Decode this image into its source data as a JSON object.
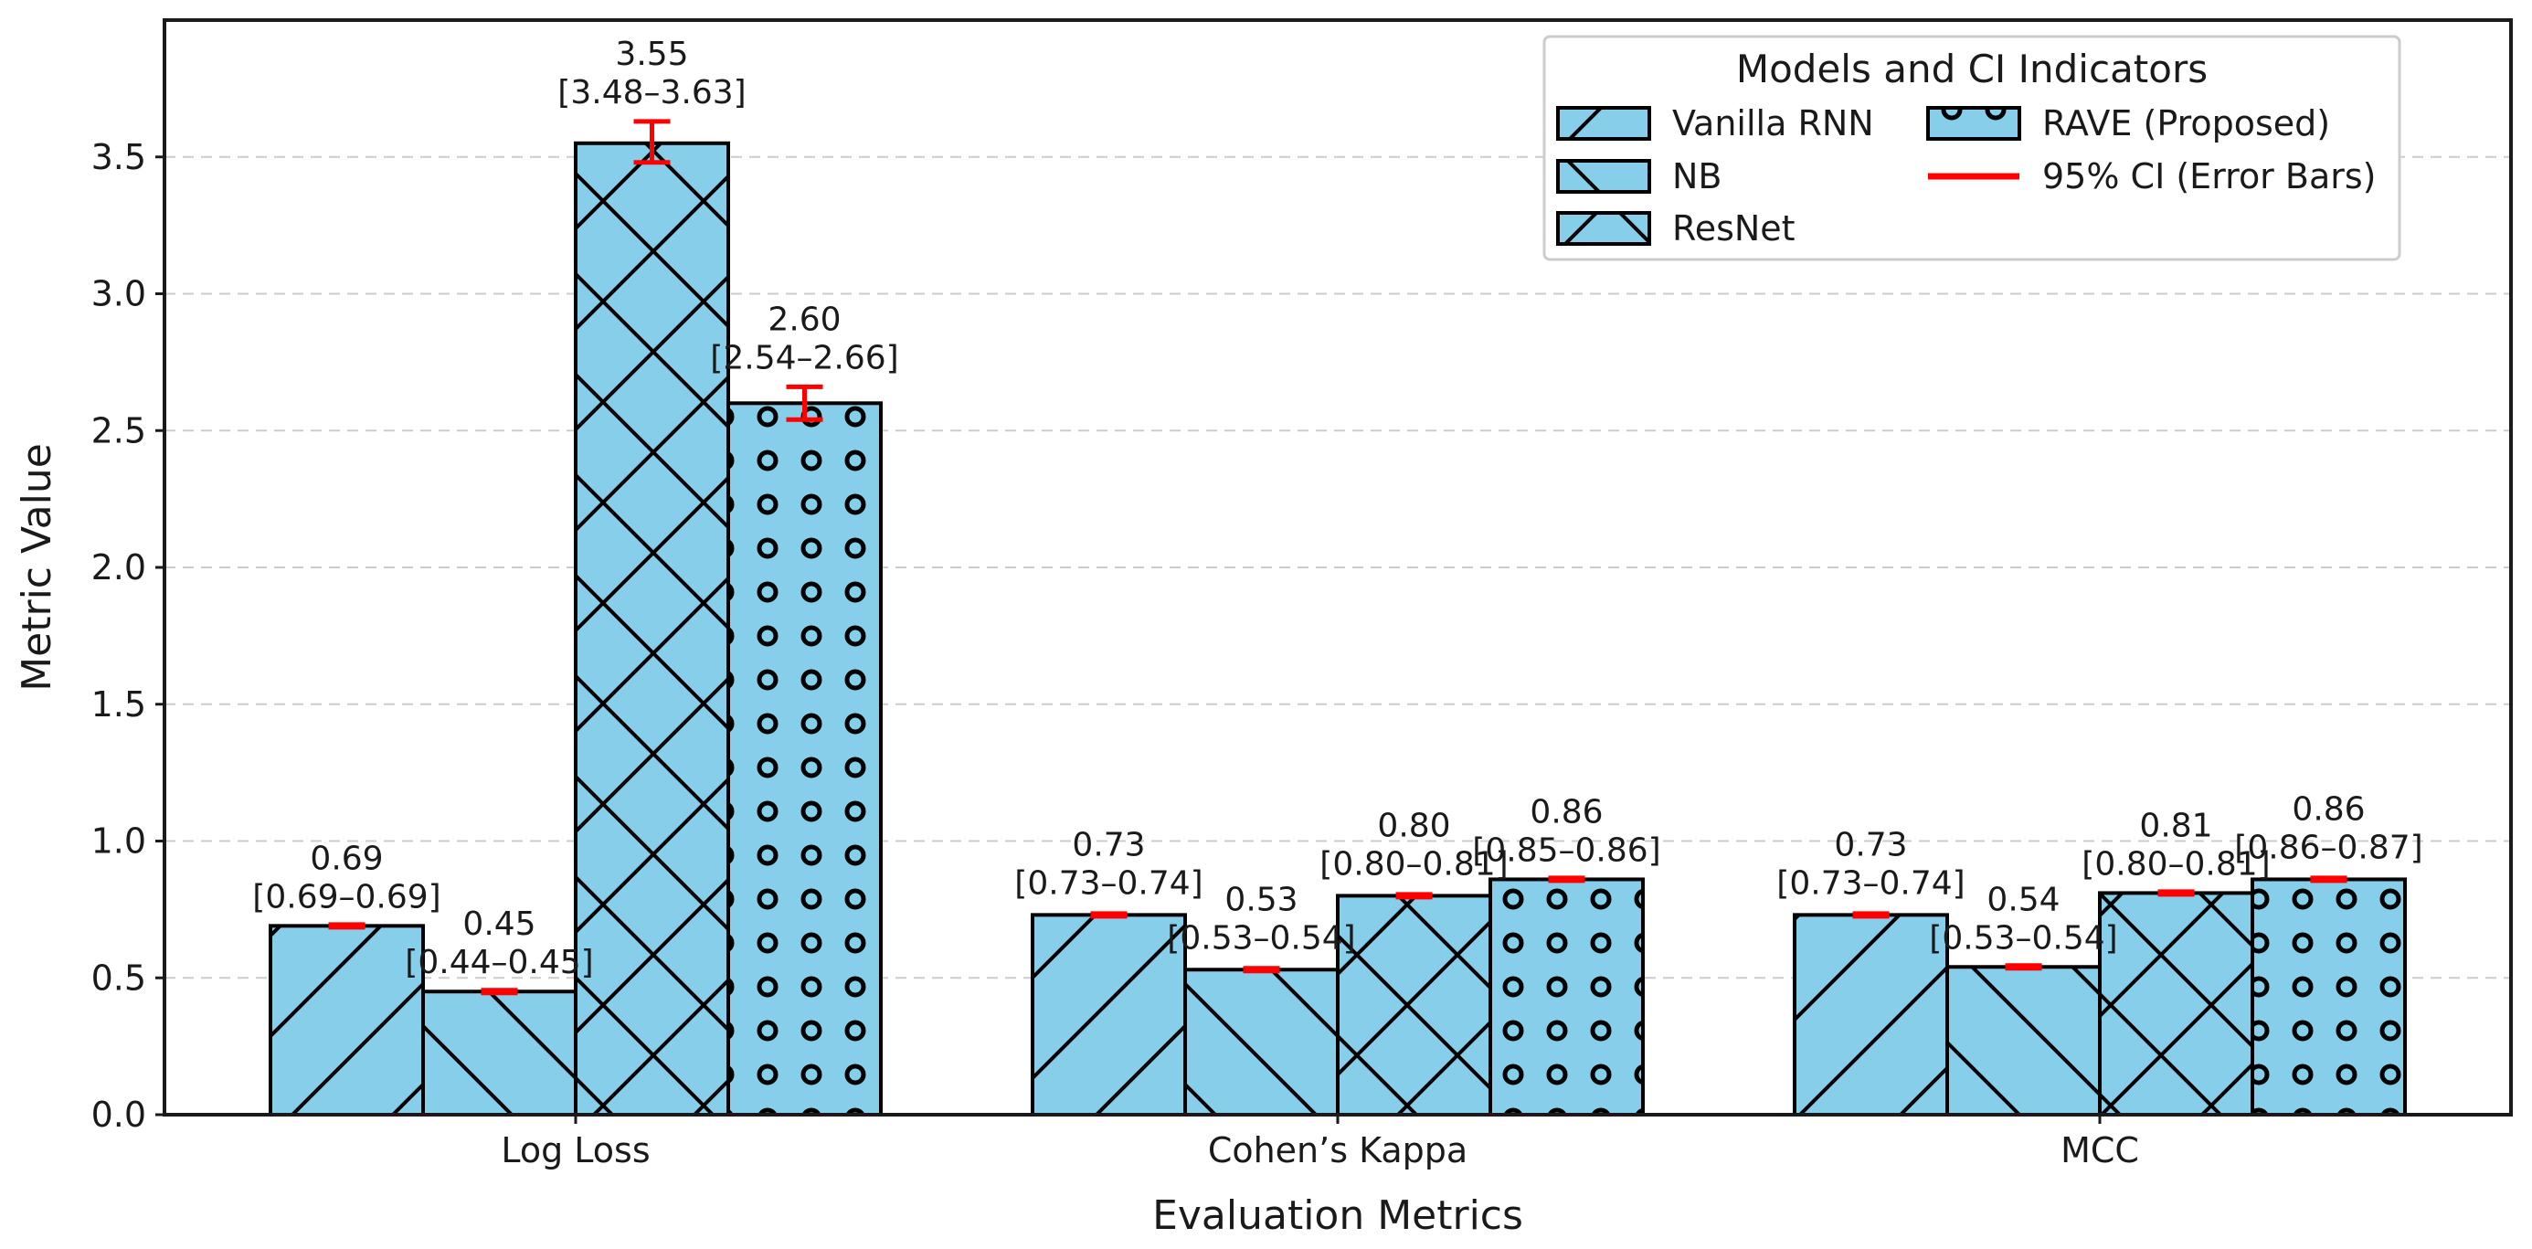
{
  "chart_data": {
    "type": "bar",
    "xlabel": "Evaluation Metrics",
    "ylabel": "Metric Value",
    "ylim": [
      0,
      4.0
    ],
    "yticks": [
      "0.0",
      "0.5",
      "1.0",
      "1.5",
      "2.0",
      "2.5",
      "3.0",
      "3.5"
    ],
    "grid": "horizontal dashed",
    "categories": [
      "Log Loss",
      "Cohen’s Kappa",
      "MCC"
    ],
    "series": [
      {
        "name": "Vanilla RNN",
        "hatch": "diagonal",
        "values": [
          0.69,
          0.73,
          0.73
        ],
        "ci_low": [
          0.69,
          0.73,
          0.73
        ],
        "ci_high": [
          0.69,
          0.74,
          0.74
        ],
        "value_labels": [
          "0.69",
          "0.73",
          "0.73"
        ],
        "ci_labels": [
          "[0.69–0.69]",
          "[0.73–0.74]",
          "[0.73–0.74]"
        ]
      },
      {
        "name": "NB",
        "hatch": "back-diagonal",
        "values": [
          0.45,
          0.53,
          0.54
        ],
        "ci_low": [
          0.44,
          0.53,
          0.53
        ],
        "ci_high": [
          0.45,
          0.54,
          0.54
        ],
        "value_labels": [
          "0.45",
          "0.53",
          "0.54"
        ],
        "ci_labels": [
          "[0.44–0.45]",
          "[0.53–0.54]",
          "[0.53–0.54]"
        ]
      },
      {
        "name": "ResNet",
        "hatch": "crosshatch",
        "values": [
          3.55,
          0.8,
          0.81
        ],
        "ci_low": [
          3.48,
          0.8,
          0.8
        ],
        "ci_high": [
          3.63,
          0.81,
          0.81
        ],
        "value_labels": [
          "3.55",
          "0.80",
          "0.81"
        ],
        "ci_labels": [
          "[3.48–3.63]",
          "[0.80–0.81]",
          "[0.80–0.81]"
        ]
      },
      {
        "name": "RAVE (Proposed)",
        "hatch": "circles",
        "values": [
          2.6,
          0.86,
          0.86
        ],
        "ci_low": [
          2.54,
          0.85,
          0.86
        ],
        "ci_high": [
          2.66,
          0.86,
          0.87
        ],
        "value_labels": [
          "2.60",
          "0.86",
          "0.86"
        ],
        "ci_labels": [
          "[2.54–2.66]",
          "[0.85–0.86]",
          "[0.86–0.87]"
        ]
      }
    ],
    "legend": {
      "title": "Models and CI Indicators",
      "placement": "top-right",
      "ci_entry": "95% CI (Error Bars)"
    },
    "colors": {
      "bar_fill": "#87CEEB",
      "bar_edge": "#000000",
      "error_bar": "#FF0000",
      "grid": "#cccccc"
    }
  }
}
